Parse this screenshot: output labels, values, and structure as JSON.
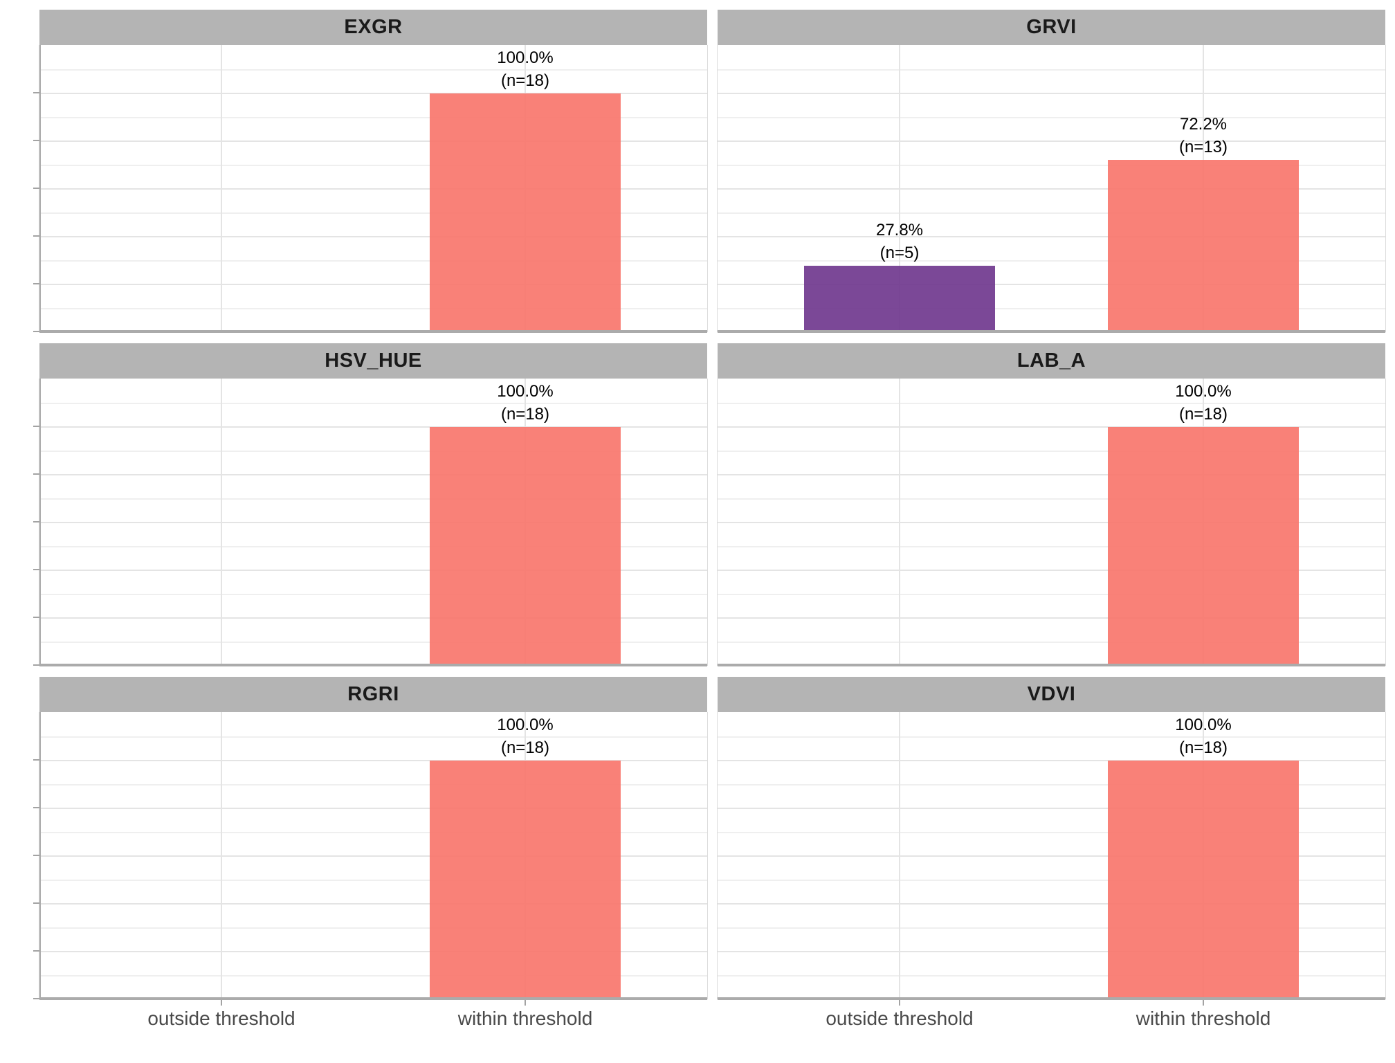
{
  "chart_data": {
    "type": "bar",
    "title": "",
    "facet_titles": [
      "EXGR",
      "GRVI",
      "HSV_HUE",
      "LAB_A",
      "RGRI",
      "VDVI"
    ],
    "categories": [
      "outside threshold",
      "within threshold"
    ],
    "facets": [
      {
        "title": "EXGR",
        "bars": [
          {
            "category": "within threshold",
            "pct": 100.0,
            "n": 18,
            "pct_label": "100.0%",
            "n_label": "(n=18)",
            "series": "within"
          }
        ]
      },
      {
        "title": "GRVI",
        "bars": [
          {
            "category": "outside threshold",
            "pct": 27.8,
            "n": 5,
            "pct_label": "27.8%",
            "n_label": "(n=5)",
            "series": "outside"
          },
          {
            "category": "within threshold",
            "pct": 72.2,
            "n": 13,
            "pct_label": "72.2%",
            "n_label": "(n=13)",
            "series": "within"
          }
        ]
      },
      {
        "title": "HSV_HUE",
        "bars": [
          {
            "category": "within threshold",
            "pct": 100.0,
            "n": 18,
            "pct_label": "100.0%",
            "n_label": "(n=18)",
            "series": "within"
          }
        ]
      },
      {
        "title": "LAB_A",
        "bars": [
          {
            "category": "within threshold",
            "pct": 100.0,
            "n": 18,
            "pct_label": "100.0%",
            "n_label": "(n=18)",
            "series": "within"
          }
        ]
      },
      {
        "title": "RGRI",
        "bars": [
          {
            "category": "within threshold",
            "pct": 100.0,
            "n": 18,
            "pct_label": "100.0%",
            "n_label": "(n=18)",
            "series": "within"
          }
        ]
      },
      {
        "title": "VDVI",
        "bars": [
          {
            "category": "within threshold",
            "pct": 100.0,
            "n": 18,
            "pct_label": "100.0%",
            "n_label": "(n=18)",
            "series": "within"
          }
        ]
      }
    ],
    "y_axis": {
      "min_pct": 0,
      "max_pct": 120,
      "major_tick_step_pct": 20,
      "minor_grid_step_pct": 10,
      "tick_labels": "none"
    },
    "layout_hints": {
      "grid": "3 rows x 2 cols",
      "legend": "none",
      "grid_lines": "horizontal major+minor, vertical major at category centers, gridlines visible through translucent bars"
    },
    "colors": {
      "series_within": "#F8766D",
      "series_outside": "#70388E",
      "bar_alpha": 0.92,
      "strip_bg": "#B4B4B4",
      "strip_text": "#1A1A1A",
      "grid_major": "#E4E4E4",
      "grid_minor": "#EFEFEF",
      "axis_line": "#ABABAB",
      "tick_mark": "#A3A3A3",
      "axis_text": "#4A4A4A",
      "bar_label_text": "#000000",
      "panel_border": "#DCDCDC",
      "background": "#FFFFFF"
    }
  }
}
